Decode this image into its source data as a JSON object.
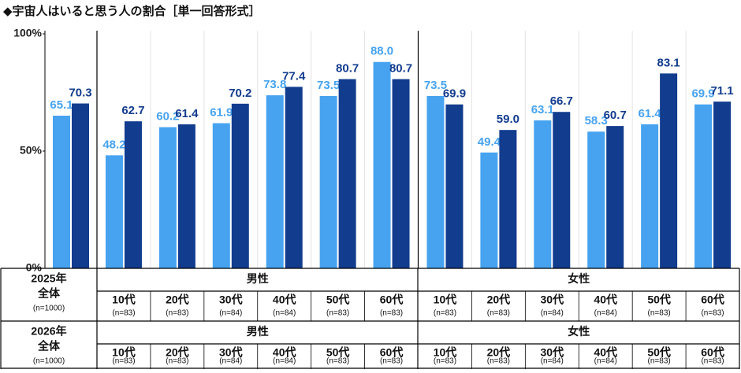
{
  "chart_data": {
    "type": "bar",
    "title": "◆宇宙人はいると思う人の割合［単一回答形式］",
    "ylim": [
      0,
      100
    ],
    "yticks": [
      {
        "value": 0,
        "label": "0%"
      },
      {
        "value": 50,
        "label": "50%"
      },
      {
        "value": 100,
        "label": "100%"
      }
    ],
    "series": [
      {
        "name": "2025年",
        "color": "#47a3f0",
        "values": [
          65.1,
          48.2,
          60.2,
          61.9,
          73.8,
          73.5,
          88.0,
          73.5,
          49.4,
          63.1,
          58.3,
          61.4,
          69.9
        ],
        "value_labels": [
          "65.1",
          "48.2",
          "60.2",
          "61.9",
          "73.8",
          "73.5",
          "88.0",
          "73.5",
          "49.4",
          "63.1",
          "58.3",
          "61.4",
          "69.9"
        ]
      },
      {
        "name": "2026年",
        "color": "#123c8e",
        "values": [
          70.3,
          62.7,
          61.4,
          70.2,
          77.4,
          80.7,
          80.7,
          69.9,
          59.0,
          66.7,
          60.7,
          83.1,
          71.1
        ],
        "value_labels": [
          "70.3",
          "62.7",
          "61.4",
          "70.2",
          "77.4",
          "80.7",
          "80.7",
          "69.9",
          "59.0",
          "66.7",
          "60.7",
          "83.1",
          "71.1"
        ]
      }
    ]
  },
  "table": {
    "rows": [
      {
        "total": "全体",
        "n": "(n=1000)",
        "groups": [
          {
            "label": "男性",
            "ages": [
              "10代",
              "20代",
              "30代",
              "40代",
              "50代",
              "60代"
            ],
            "ns": [
              "(n=83)",
              "(n=83)",
              "(n=84)",
              "(n=84)",
              "(n=83)",
              "(n=83)"
            ]
          },
          {
            "label": "女性",
            "ages": [
              "10代",
              "20代",
              "30代",
              "40代",
              "50代",
              "60代"
            ],
            "ns": [
              "(n=83)",
              "(n=83)",
              "(n=84)",
              "(n=84)",
              "(n=83)",
              "(n=83)"
            ]
          }
        ]
      },
      {
        "total": "全体",
        "n": "(n=1000)",
        "groups": [
          {
            "label": "男性",
            "ages": [
              "10代",
              "20代",
              "30代",
              "40代",
              "50代",
              "60代"
            ],
            "ns": [
              "(n=83)",
              "(n=83)",
              "(n=84)",
              "(n=84)",
              "(n=83)",
              "(n=83)"
            ]
          },
          {
            "label": "女性",
            "ages": [
              "10代",
              "20代",
              "30代",
              "40代",
              "50代",
              "60代"
            ],
            "ns": [
              "(n=83)",
              "(n=83)",
              "(n=84)",
              "(n=84)",
              "(n=83)",
              "(n=83)"
            ]
          }
        ]
      }
    ]
  }
}
